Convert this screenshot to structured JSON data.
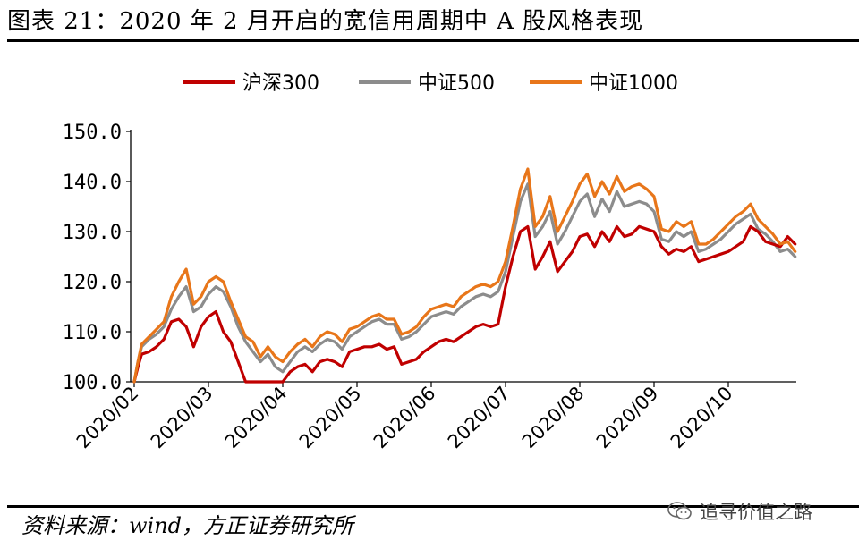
{
  "header": {
    "title": "图表 21：2020 年 2 月开启的宽信用周期中 A 股风格表现"
  },
  "footer": {
    "source": "资料来源：wind，方正证券研究所"
  },
  "watermark": {
    "text": "追寻价值之路",
    "icon": "wechat-icon"
  },
  "colors": {
    "hs300": "#C00000",
    "zz500": "#8C8C8C",
    "zz1000": "#E8761A",
    "axis": "#000000"
  },
  "chart_data": {
    "type": "line",
    "title": "",
    "xlabel": "",
    "ylabel": "",
    "ylim": [
      100,
      150
    ],
    "yticks": [
      "100.0",
      "110.0",
      "120.0",
      "130.0",
      "140.0",
      "150.0"
    ],
    "yticks_values": [
      100,
      110,
      120,
      130,
      140,
      150
    ],
    "xticks": [
      "2020/02",
      "2020/03",
      "2020/04",
      "2020/05",
      "2020/06",
      "2020/07",
      "2020/08",
      "2020/09",
      "2020/10"
    ],
    "xticks_values": [
      0,
      1,
      2,
      3,
      4,
      5,
      6,
      7,
      8
    ],
    "legend_position": "top-center",
    "grid": false,
    "series": [
      {
        "name": "沪深300",
        "color": "#C00000",
        "points": [
          [
            0,
            100
          ],
          [
            0.05,
            103
          ],
          [
            0.1,
            105.5
          ],
          [
            0.2,
            106
          ],
          [
            0.3,
            107
          ],
          [
            0.4,
            108.5
          ],
          [
            0.5,
            112
          ],
          [
            0.6,
            112.5
          ],
          [
            0.7,
            111
          ],
          [
            0.8,
            107
          ],
          [
            0.9,
            111
          ],
          [
            1.0,
            113
          ],
          [
            1.1,
            114
          ],
          [
            1.2,
            110
          ],
          [
            1.3,
            108
          ],
          [
            1.4,
            104
          ],
          [
            1.5,
            100
          ],
          [
            1.6,
            98
          ],
          [
            1.7,
            97
          ],
          [
            1.8,
            99
          ],
          [
            1.9,
            100
          ],
          [
            2.0,
            99
          ],
          [
            2.1,
            102
          ],
          [
            2.2,
            103
          ],
          [
            2.3,
            103.5
          ],
          [
            2.4,
            102
          ],
          [
            2.5,
            104
          ],
          [
            2.6,
            104.5
          ],
          [
            2.7,
            104
          ],
          [
            2.8,
            103
          ],
          [
            2.9,
            106
          ],
          [
            3.0,
            106.5
          ],
          [
            3.1,
            107
          ],
          [
            3.2,
            107
          ],
          [
            3.3,
            107.5
          ],
          [
            3.4,
            106.5
          ],
          [
            3.5,
            107
          ],
          [
            3.6,
            103.5
          ],
          [
            3.7,
            104
          ],
          [
            3.8,
            104.5
          ],
          [
            3.9,
            106
          ],
          [
            4.0,
            107
          ],
          [
            4.1,
            108
          ],
          [
            4.2,
            108.5
          ],
          [
            4.3,
            108
          ],
          [
            4.4,
            109
          ],
          [
            4.5,
            110
          ],
          [
            4.6,
            111
          ],
          [
            4.7,
            111.5
          ],
          [
            4.8,
            111
          ],
          [
            4.9,
            111.5
          ],
          [
            5.0,
            119
          ],
          [
            5.1,
            125
          ],
          [
            5.2,
            130
          ],
          [
            5.3,
            131
          ],
          [
            5.4,
            122.5
          ],
          [
            5.5,
            125
          ],
          [
            5.6,
            128
          ],
          [
            5.7,
            122
          ],
          [
            5.8,
            124
          ],
          [
            5.9,
            126
          ],
          [
            6.0,
            129
          ],
          [
            6.1,
            129.5
          ],
          [
            6.2,
            127
          ],
          [
            6.3,
            130
          ],
          [
            6.4,
            128
          ],
          [
            6.5,
            131
          ],
          [
            6.6,
            129
          ],
          [
            6.7,
            129.5
          ],
          [
            6.8,
            131
          ],
          [
            6.9,
            130.5
          ],
          [
            7.0,
            130
          ],
          [
            7.1,
            127
          ],
          [
            7.2,
            125.5
          ],
          [
            7.3,
            126.5
          ],
          [
            7.4,
            126
          ],
          [
            7.5,
            127
          ],
          [
            7.6,
            124
          ],
          [
            7.7,
            124.5
          ],
          [
            7.8,
            125
          ],
          [
            7.9,
            125.5
          ],
          [
            8.0,
            126
          ],
          [
            8.1,
            127
          ],
          [
            8.2,
            128
          ],
          [
            8.3,
            131
          ],
          [
            8.4,
            130
          ],
          [
            8.5,
            128
          ],
          [
            8.6,
            127.5
          ],
          [
            8.7,
            127
          ],
          [
            8.8,
            129
          ],
          [
            8.9,
            127.5
          ]
        ]
      },
      {
        "name": "中证500",
        "color": "#8C8C8C",
        "points": [
          [
            0,
            100
          ],
          [
            0.05,
            104
          ],
          [
            0.1,
            107
          ],
          [
            0.2,
            108.5
          ],
          [
            0.3,
            109.5
          ],
          [
            0.4,
            111
          ],
          [
            0.5,
            114.5
          ],
          [
            0.6,
            117
          ],
          [
            0.7,
            119
          ],
          [
            0.8,
            114
          ],
          [
            0.9,
            115
          ],
          [
            1.0,
            117.5
          ],
          [
            1.1,
            119
          ],
          [
            1.2,
            118
          ],
          [
            1.3,
            115
          ],
          [
            1.4,
            111
          ],
          [
            1.5,
            108
          ],
          [
            1.6,
            106
          ],
          [
            1.7,
            104
          ],
          [
            1.8,
            105.5
          ],
          [
            1.9,
            103
          ],
          [
            2.0,
            102
          ],
          [
            2.1,
            104
          ],
          [
            2.2,
            106
          ],
          [
            2.3,
            107
          ],
          [
            2.4,
            106
          ],
          [
            2.5,
            107.5
          ],
          [
            2.6,
            108.5
          ],
          [
            2.7,
            108
          ],
          [
            2.8,
            106.5
          ],
          [
            2.9,
            109
          ],
          [
            3.0,
            110
          ],
          [
            3.1,
            111
          ],
          [
            3.2,
            112
          ],
          [
            3.3,
            112.5
          ],
          [
            3.4,
            111.5
          ],
          [
            3.5,
            111.5
          ],
          [
            3.6,
            108.5
          ],
          [
            3.7,
            109
          ],
          [
            3.8,
            110
          ],
          [
            3.9,
            111.5
          ],
          [
            4.0,
            113
          ],
          [
            4.1,
            113.5
          ],
          [
            4.2,
            114
          ],
          [
            4.3,
            113.5
          ],
          [
            4.4,
            115
          ],
          [
            4.5,
            116
          ],
          [
            4.6,
            117
          ],
          [
            4.7,
            117.5
          ],
          [
            4.8,
            117
          ],
          [
            4.9,
            118
          ],
          [
            5.0,
            122
          ],
          [
            5.1,
            129
          ],
          [
            5.2,
            136
          ],
          [
            5.3,
            139.5
          ],
          [
            5.4,
            129
          ],
          [
            5.5,
            131
          ],
          [
            5.6,
            134
          ],
          [
            5.7,
            127.5
          ],
          [
            5.8,
            130
          ],
          [
            5.9,
            133
          ],
          [
            6.0,
            136
          ],
          [
            6.1,
            137.5
          ],
          [
            6.2,
            133
          ],
          [
            6.3,
            136.5
          ],
          [
            6.4,
            134
          ],
          [
            6.5,
            138
          ],
          [
            6.6,
            135
          ],
          [
            6.7,
            135.5
          ],
          [
            6.8,
            136
          ],
          [
            6.9,
            135.5
          ],
          [
            7.0,
            134
          ],
          [
            7.1,
            128.5
          ],
          [
            7.2,
            128
          ],
          [
            7.3,
            130
          ],
          [
            7.4,
            129
          ],
          [
            7.5,
            130
          ],
          [
            7.6,
            126
          ],
          [
            7.7,
            126.5
          ],
          [
            7.8,
            127.5
          ],
          [
            7.9,
            128.5
          ],
          [
            8.0,
            130
          ],
          [
            8.1,
            131.5
          ],
          [
            8.2,
            132.5
          ],
          [
            8.3,
            133.5
          ],
          [
            8.4,
            130.5
          ],
          [
            8.5,
            129.5
          ],
          [
            8.6,
            128
          ],
          [
            8.7,
            126
          ],
          [
            8.8,
            126.5
          ],
          [
            8.9,
            125
          ]
        ]
      },
      {
        "name": "中证1000",
        "color": "#E8761A",
        "points": [
          [
            0,
            100
          ],
          [
            0.05,
            104
          ],
          [
            0.1,
            107.5
          ],
          [
            0.2,
            109
          ],
          [
            0.3,
            110.5
          ],
          [
            0.4,
            112
          ],
          [
            0.5,
            117
          ],
          [
            0.6,
            120
          ],
          [
            0.7,
            122.5
          ],
          [
            0.8,
            115.5
          ],
          [
            0.9,
            117
          ],
          [
            1.0,
            120
          ],
          [
            1.1,
            121
          ],
          [
            1.2,
            120
          ],
          [
            1.3,
            116
          ],
          [
            1.4,
            112.5
          ],
          [
            1.5,
            109
          ],
          [
            1.6,
            108
          ],
          [
            1.7,
            105
          ],
          [
            1.8,
            107
          ],
          [
            1.9,
            105
          ],
          [
            2.0,
            104
          ],
          [
            2.1,
            106
          ],
          [
            2.2,
            107.5
          ],
          [
            2.3,
            108.5
          ],
          [
            2.4,
            107
          ],
          [
            2.5,
            109
          ],
          [
            2.6,
            110
          ],
          [
            2.7,
            109.5
          ],
          [
            2.8,
            108
          ],
          [
            2.9,
            110.5
          ],
          [
            3.0,
            111
          ],
          [
            3.1,
            112
          ],
          [
            3.2,
            113
          ],
          [
            3.3,
            113.5
          ],
          [
            3.4,
            112.5
          ],
          [
            3.5,
            112.5
          ],
          [
            3.6,
            109.5
          ],
          [
            3.7,
            110
          ],
          [
            3.8,
            111
          ],
          [
            3.9,
            113
          ],
          [
            4.0,
            114.5
          ],
          [
            4.1,
            115
          ],
          [
            4.2,
            115.5
          ],
          [
            4.3,
            115
          ],
          [
            4.4,
            117
          ],
          [
            4.5,
            118
          ],
          [
            4.6,
            119
          ],
          [
            4.7,
            119.5
          ],
          [
            4.8,
            119
          ],
          [
            4.9,
            120
          ],
          [
            5.0,
            124
          ],
          [
            5.1,
            131
          ],
          [
            5.2,
            138.5
          ],
          [
            5.3,
            142.5
          ],
          [
            5.4,
            131
          ],
          [
            5.5,
            133
          ],
          [
            5.6,
            137
          ],
          [
            5.7,
            130
          ],
          [
            5.8,
            133
          ],
          [
            5.9,
            136
          ],
          [
            6.0,
            139.5
          ],
          [
            6.1,
            141.5
          ],
          [
            6.2,
            137
          ],
          [
            6.3,
            140
          ],
          [
            6.4,
            137.5
          ],
          [
            6.5,
            141
          ],
          [
            6.6,
            138
          ],
          [
            6.7,
            139
          ],
          [
            6.8,
            139.5
          ],
          [
            6.9,
            138.5
          ],
          [
            7.0,
            137
          ],
          [
            7.1,
            130.5
          ],
          [
            7.2,
            130
          ],
          [
            7.3,
            132
          ],
          [
            7.4,
            131
          ],
          [
            7.5,
            132
          ],
          [
            7.6,
            127.5
          ],
          [
            7.7,
            127.5
          ],
          [
            7.8,
            128.5
          ],
          [
            7.9,
            130
          ],
          [
            8.0,
            131.5
          ],
          [
            8.1,
            133
          ],
          [
            8.2,
            134
          ],
          [
            8.3,
            135.5
          ],
          [
            8.4,
            132.5
          ],
          [
            8.5,
            131
          ],
          [
            8.6,
            129.5
          ],
          [
            8.7,
            127.5
          ],
          [
            8.8,
            128
          ],
          [
            8.9,
            126
          ]
        ]
      }
    ]
  }
}
